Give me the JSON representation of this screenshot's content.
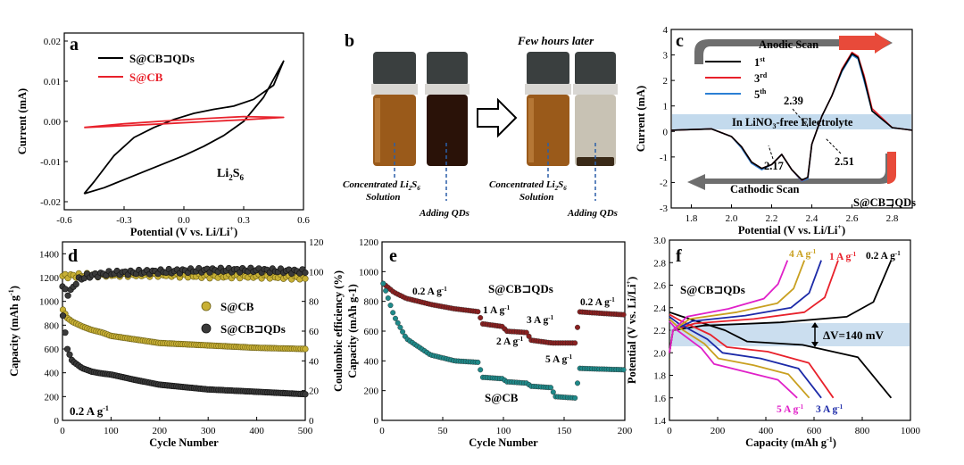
{
  "panels": {
    "a": {
      "letter": "a",
      "xlabel": "Potential (V vs. Li/Li",
      "xlabel_sup": "+",
      "xlabel_end": ")",
      "ylabel": "Current (mA)",
      "xticks": [
        "-0.6",
        "-0.3",
        "0.0",
        "0.3",
        "0.6"
      ],
      "yticks": [
        "-0.02",
        "-0.01",
        "0.00",
        "0.01",
        "0.02"
      ],
      "legend": [
        {
          "label": "S@CB⊐QDs",
          "color": "#000000"
        },
        {
          "label": "S@CB",
          "color": "#e8212b"
        }
      ],
      "annotation": "Li",
      "annotation_sub1": "2",
      "annotation_mid": "S",
      "annotation_sub2": "6"
    },
    "b": {
      "letter": "b",
      "title_later": "Few hours later",
      "left_vial_label_1": "Concentrated Li",
      "left_vial_sub": "2",
      "left_vial_label_2": "S",
      "left_vial_sub2": "6",
      "left_vial_label_3": "Solution",
      "adding": "Adding QDs"
    },
    "c": {
      "letter": "c",
      "xlabel": "Potential (V vs. Li/Li",
      "xlabel_sup": "+",
      "xlabel_end": ")",
      "ylabel": "Current (mA)",
      "xticks": [
        "1.8",
        "2.0",
        "2.2",
        "2.4",
        "2.6",
        "2.8"
      ],
      "yticks": [
        "-3",
        "-2",
        "-1",
        "0",
        "1",
        "2",
        "3",
        "4"
      ],
      "anodic": "Anodic Scan",
      "cathodic": "Cathodic Scan",
      "band": "In  LiNO",
      "band_sub": "3",
      "band_end": "-free  Electrolyte",
      "legend": [
        {
          "label": "1",
          "sup": "st",
          "color": "#000000"
        },
        {
          "label": "3",
          "sup": "rd",
          "color": "#e8212b"
        },
        {
          "label": "5",
          "sup": "th",
          "color": "#2b7fd4"
        }
      ],
      "peak_labels": [
        "2.39",
        "2.17",
        "2.51"
      ],
      "sample": "S@CB⊐QDs"
    },
    "d": {
      "letter": "d",
      "xlabel": "Cycle Number",
      "ylabel": "Capacity (mAh g",
      "ylabel_sup": "-1",
      "ylabel_end": ")",
      "ylabel2": "Coulombic efficiency (%)",
      "xticks": [
        "0",
        "100",
        "200",
        "300",
        "400",
        "500"
      ],
      "yticks": [
        "0",
        "200",
        "400",
        "600",
        "800",
        "1000",
        "1200",
        "1400"
      ],
      "y2ticks": [
        "0",
        "20",
        "40",
        "60",
        "80",
        "100",
        "120"
      ],
      "legend": [
        "S@CB",
        "S@CB⊐QDs"
      ],
      "rate": "0.2 A g",
      "rate_sup": "-1"
    },
    "e": {
      "letter": "e",
      "xlabel": "Cycle Number",
      "ylabel": "Capacity (mAh g-1)",
      "xticks": [
        "0",
        "50",
        "100",
        "150",
        "200"
      ],
      "yticks": [
        "0",
        "200",
        "400",
        "600",
        "800",
        "1000",
        "1200"
      ],
      "sample_top": "S@CB⊐QDs",
      "sample_bottom": "S@CB",
      "rates": [
        "0.2 A g",
        "1 A g",
        "2 A g",
        "3 A g",
        "5 A g",
        "0.2 A g"
      ],
      "rate_sup": "-1"
    },
    "f": {
      "letter": "f",
      "xlabel": "Capacity (mAh g",
      "xlabel_sup": "-1",
      "xlabel_end": ")",
      "ylabel": "Potential (V vs. Li/Li",
      "ylabel_sup": "+",
      "ylabel_end": ")",
      "xticks": [
        "0",
        "200",
        "400",
        "600",
        "800",
        "1000"
      ],
      "yticks": [
        "1.4",
        "1.6",
        "1.8",
        "2.0",
        "2.2",
        "2.4",
        "2.6",
        "2.8",
        "3.0"
      ],
      "sample": "S@CB⊐QDs",
      "dv": "ΔV=140 mV",
      "top_rates": [
        {
          "label": "4 A g",
          "color": "#c9a020"
        },
        {
          "label": "1 A g",
          "color": "#e8212b"
        },
        {
          "label": "0.2 A g",
          "color": "#000000"
        }
      ],
      "bottom_rates": [
        {
          "label": "5 A g",
          "color": "#e020c8"
        },
        {
          "label": "3 A g",
          "color": "#1c2aa8"
        }
      ],
      "rate_sup": "-1"
    }
  },
  "chart_data": [
    {
      "panel": "a",
      "type": "line",
      "xlabel": "Potential (V vs. Li/Li+)",
      "ylabel": "Current (mA)",
      "xlim": [
        -0.6,
        0.6
      ],
      "ylim": [
        -0.022,
        0.022
      ],
      "series": [
        {
          "name": "S@CB⊐QDs",
          "color": "#000000",
          "x": [
            -0.5,
            -0.4,
            -0.3,
            -0.2,
            -0.1,
            0.0,
            0.1,
            0.2,
            0.3,
            0.4,
            0.5,
            0.45,
            0.35,
            0.25,
            0.15,
            0.05,
            -0.05,
            -0.15,
            -0.25,
            -0.35,
            -0.45,
            -0.5
          ],
          "y": [
            -0.018,
            -0.0165,
            -0.0145,
            -0.0125,
            -0.0105,
            -0.0085,
            -0.0062,
            -0.0035,
            0.0,
            0.006,
            0.015,
            0.009,
            0.0055,
            0.0038,
            0.003,
            0.002,
            0.0005,
            -0.0015,
            -0.004,
            -0.0085,
            -0.015,
            -0.018
          ]
        },
        {
          "name": "S@CB",
          "color": "#e8212b",
          "x": [
            -0.5,
            -0.3,
            -0.1,
            0.1,
            0.3,
            0.5,
            0.3,
            0.1,
            -0.1,
            -0.3,
            -0.5
          ],
          "y": [
            -0.0015,
            -0.0011,
            -0.0006,
            -0.0001,
            0.0004,
            0.001,
            0.0012,
            0.0007,
            0.0001,
            -0.0006,
            -0.0015
          ]
        }
      ]
    },
    {
      "panel": "c",
      "type": "line",
      "xlabel": "Potential (V vs. Li/Li+)",
      "ylabel": "Current (mA)",
      "xlim": [
        1.7,
        2.9
      ],
      "ylim": [
        -3,
        4
      ],
      "series": [
        {
          "name": "1st",
          "color": "#000000",
          "x": [
            1.7,
            1.9,
            2.0,
            2.05,
            2.1,
            2.15,
            2.2,
            2.25,
            2.3,
            2.35,
            2.38,
            2.4,
            2.45,
            2.5,
            2.55,
            2.6,
            2.63,
            2.66,
            2.7,
            2.8,
            2.9
          ],
          "y": [
            0.05,
            0.1,
            -0.2,
            -0.6,
            -1.2,
            -1.45,
            -1.3,
            -0.9,
            -1.5,
            -1.9,
            -1.8,
            -0.5,
            0.6,
            1.4,
            2.4,
            3.05,
            2.9,
            2.1,
            0.8,
            0.15,
            0.05
          ]
        },
        {
          "name": "3rd",
          "color": "#e8212b",
          "x": [
            1.7,
            1.9,
            2.0,
            2.05,
            2.1,
            2.15,
            2.2,
            2.25,
            2.3,
            2.35,
            2.38,
            2.4,
            2.45,
            2.5,
            2.55,
            2.6,
            2.63,
            2.66,
            2.7,
            2.8,
            2.9
          ],
          "y": [
            0.05,
            0.1,
            -0.2,
            -0.6,
            -1.2,
            -1.45,
            -1.3,
            -0.9,
            -1.5,
            -1.92,
            -1.8,
            -0.5,
            0.6,
            1.4,
            2.45,
            3.1,
            2.95,
            2.2,
            0.9,
            0.15,
            0.05
          ]
        },
        {
          "name": "5th",
          "color": "#2b7fd4",
          "x": [
            1.7,
            1.9,
            2.0,
            2.05,
            2.1,
            2.15,
            2.2,
            2.25,
            2.3,
            2.35,
            2.38,
            2.4,
            2.45,
            2.5,
            2.55,
            2.6,
            2.63,
            2.66,
            2.7,
            2.8,
            2.9
          ],
          "y": [
            0.05,
            0.1,
            -0.2,
            -0.65,
            -1.25,
            -1.5,
            -1.3,
            -0.9,
            -1.5,
            -1.95,
            -1.85,
            -0.5,
            0.6,
            1.4,
            2.35,
            3.0,
            2.85,
            2.0,
            0.8,
            0.15,
            0.05
          ]
        }
      ]
    },
    {
      "panel": "d",
      "type": "scatter",
      "xlabel": "Cycle Number",
      "ylabel": "Capacity (mAh g-1)",
      "ylabel_right": "Coulombic efficiency (%)",
      "xlim": [
        0,
        500
      ],
      "ylim": [
        0,
        1500
      ],
      "y2lim": [
        0,
        120
      ],
      "series": [
        {
          "name": "S@CB",
          "color": "#c8b035",
          "axis": "left",
          "x": [
            1,
            10,
            20,
            40,
            60,
            80,
            100,
            150,
            200,
            250,
            300,
            350,
            400,
            450,
            500
          ],
          "y": [
            930,
            860,
            830,
            790,
            760,
            740,
            710,
            680,
            650,
            640,
            630,
            620,
            610,
            605,
            600
          ]
        },
        {
          "name": "S@CB⊐QDs",
          "color": "#3a3a3a",
          "axis": "left",
          "x": [
            1,
            10,
            20,
            40,
            60,
            80,
            100,
            150,
            200,
            250,
            300,
            350,
            400,
            450,
            500
          ],
          "y": [
            880,
            600,
            500,
            440,
            410,
            395,
            385,
            340,
            300,
            280,
            260,
            250,
            240,
            230,
            220
          ]
        },
        {
          "name": "S@CB CE",
          "color": "#c8b035",
          "axis": "right",
          "x": [
            0,
            100,
            200,
            300,
            400,
            500
          ],
          "y": [
            97,
            98,
            98,
            97,
            97,
            96
          ]
        },
        {
          "name": "S@CB⊐QDs CE",
          "color": "#3a3a3a",
          "axis": "right",
          "x": [
            0,
            10,
            20,
            30,
            50,
            100,
            200,
            300,
            400,
            500
          ],
          "y": [
            90,
            85,
            88,
            94,
            97,
            99,
            100,
            101,
            101,
            100
          ]
        }
      ]
    },
    {
      "panel": "e",
      "type": "scatter",
      "xlabel": "Cycle Number",
      "ylabel": "Capacity (mAh g-1)",
      "xlim": [
        0,
        200
      ],
      "ylim": [
        0,
        1200
      ],
      "series": [
        {
          "name": "S@CB⊐QDs",
          "color": "#8a2020",
          "x": [
            1,
            10,
            20,
            40,
            60,
            80,
            82,
            100,
            102,
            120,
            122,
            140,
            142,
            160,
            162,
            180,
            200
          ],
          "y": [
            920,
            860,
            820,
            780,
            750,
            730,
            650,
            630,
            600,
            590,
            540,
            520,
            520,
            520,
            730,
            720,
            710
          ]
        },
        {
          "name": "S@CB",
          "color": "#1f8a8a",
          "x": [
            1,
            10,
            20,
            40,
            60,
            80,
            82,
            100,
            102,
            120,
            122,
            140,
            142,
            160,
            162,
            180,
            200
          ],
          "y": [
            920,
            700,
            550,
            440,
            400,
            390,
            290,
            280,
            260,
            250,
            230,
            220,
            160,
            150,
            350,
            345,
            340
          ]
        }
      ]
    },
    {
      "panel": "f",
      "type": "line",
      "xlabel": "Capacity (mAh g-1)",
      "ylabel": "Potential (V vs. Li/Li+)",
      "xlim": [
        0,
        1000
      ],
      "ylim": [
        1.4,
        3.0
      ],
      "series": [
        {
          "name": "0.2 A g-1",
          "color": "#000000",
          "charge_end": 920,
          "discharge_end": 920
        },
        {
          "name": "1 A g-1",
          "color": "#e8212b",
          "charge_end": 700,
          "discharge_end": 680
        },
        {
          "name": "3 A g-1",
          "color": "#1c2aa8",
          "charge_end": 630,
          "discharge_end": 630
        },
        {
          "name": "4 A g-1",
          "color": "#c9a020",
          "charge_end": 560,
          "discharge_end": 580
        },
        {
          "name": "5 A g-1",
          "color": "#e020c8",
          "charge_end": 490,
          "discharge_end": 530
        }
      ],
      "annotation": "ΔV=140 mV"
    }
  ]
}
